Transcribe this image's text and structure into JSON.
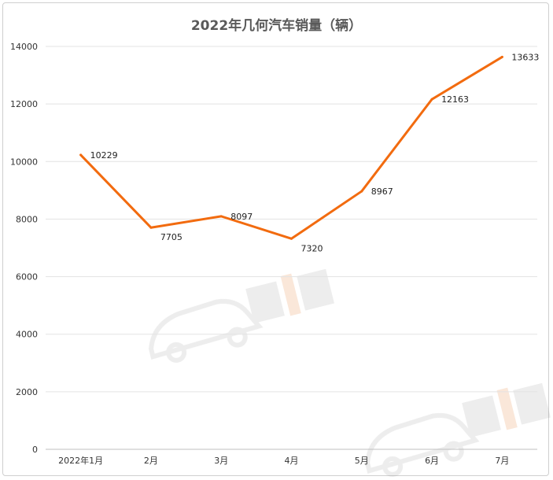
{
  "chart_data": {
    "type": "line",
    "title": "2022年几何汽车销量（辆）",
    "categories": [
      "2022年1月",
      "2月",
      "3月",
      "4月",
      "5月",
      "6月",
      "7月"
    ],
    "series": [
      {
        "values": [
          10229,
          7705,
          8097,
          7320,
          8967,
          12163,
          13633
        ]
      }
    ],
    "ylim": [
      0,
      14000
    ],
    "yticks": [
      0,
      2000,
      4000,
      6000,
      8000,
      10000,
      12000,
      14000
    ],
    "grid": true,
    "line_color": "#F26B0F"
  }
}
